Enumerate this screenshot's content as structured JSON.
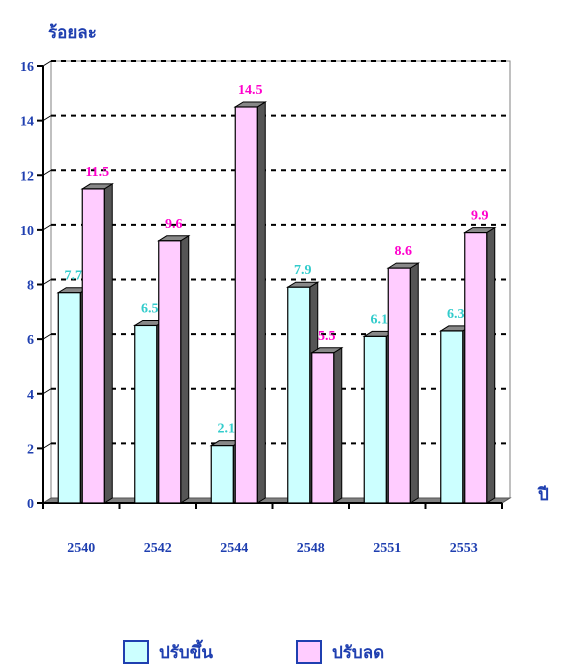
{
  "chart_data": {
    "type": "bar",
    "ylabel": "ร้อยละ",
    "xlabel": "ปี",
    "categories": [
      "2540",
      "2542",
      "2544",
      "2548",
      "2551",
      "2553"
    ],
    "series": [
      {
        "name": "ปรับขึ้น",
        "values": [
          7.7,
          6.5,
          2.1,
          7.9,
          6.1,
          6.3
        ],
        "color": "#ccffff",
        "label_color": "#33cccc"
      },
      {
        "name": "ปรับลด",
        "values": [
          11.5,
          9.6,
          14.5,
          5.5,
          8.6,
          9.9
        ],
        "color": "#ffccff",
        "label_color": "#ff00cc"
      }
    ],
    "ylim": [
      0,
      16
    ],
    "yticks": [
      "0",
      "2",
      "4",
      "6",
      "8",
      "10",
      "12",
      "14",
      "16"
    ],
    "grid": "dotted-horizontal",
    "style": "3d-bars",
    "legend_position": "bottom"
  }
}
